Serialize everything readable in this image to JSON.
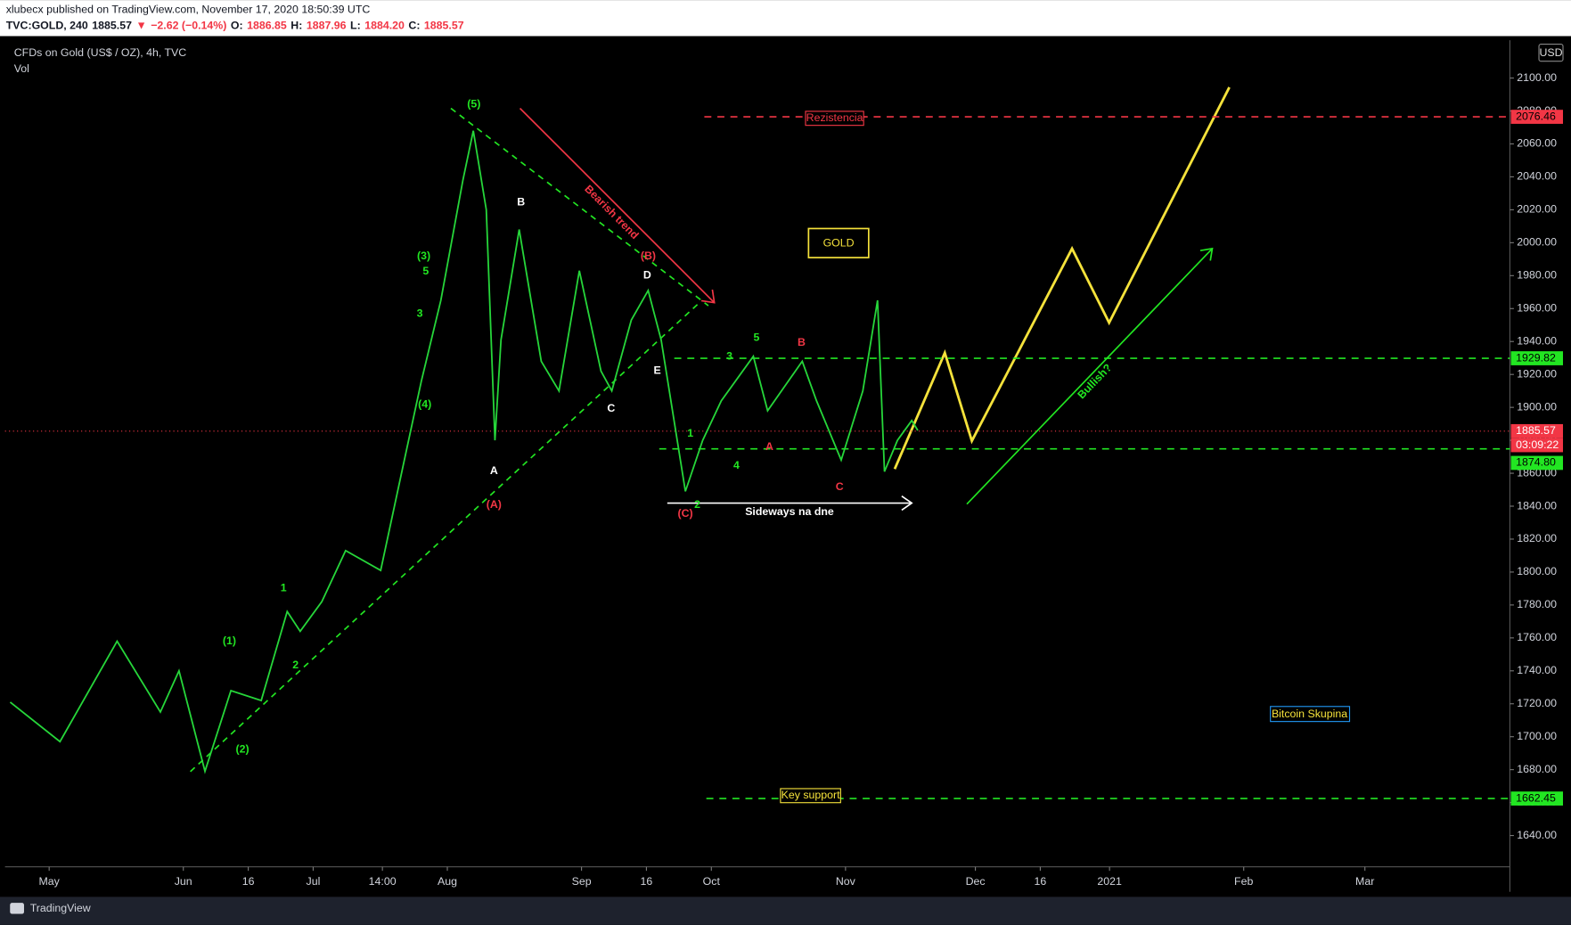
{
  "header": {
    "line1": "xlubecx published on TradingView.com, November 17, 2020 18:50:39 UTC",
    "line2": [
      "TVC:GOLD, 240",
      "1885.57",
      "▼",
      "−2.62 (−0.14%)",
      "O:",
      "1886.85",
      "H:",
      "1887.96",
      "L:",
      "1884.20",
      "C:",
      "1885.57"
    ]
  },
  "chart_data": {
    "type": "line",
    "title": "CFDs on Gold (US$ / OZ), 4h, TVC",
    "subtitle": "Vol",
    "currency": "USD",
    "xlim": [
      -10.2,
      337.5
    ],
    "xticks": [
      {
        "value": 0,
        "label": "May"
      },
      {
        "value": 31,
        "label": "Jun"
      },
      {
        "value": 46,
        "label": "16"
      },
      {
        "value": 61,
        "label": "Jul"
      },
      {
        "value": 77,
        "label": "14:00"
      },
      {
        "value": 92,
        "label": "Aug"
      },
      {
        "value": 123,
        "label": "Sep"
      },
      {
        "value": 138,
        "label": "16"
      },
      {
        "value": 153,
        "label": "Oct"
      },
      {
        "value": 184,
        "label": "Nov"
      },
      {
        "value": 214,
        "label": "Dec"
      },
      {
        "value": 229,
        "label": "16"
      },
      {
        "value": 245,
        "label": "2021"
      },
      {
        "value": 276,
        "label": "Feb"
      },
      {
        "value": 304,
        "label": "Mar"
      }
    ],
    "ylim": [
      1621,
      2123
    ],
    "yticks": [
      {
        "value": 1640,
        "label": "1640.00"
      },
      {
        "value": 1660,
        "label": "1660.00"
      },
      {
        "value": 1680,
        "label": "1680.00"
      },
      {
        "value": 1700,
        "label": "1700.00"
      },
      {
        "value": 1720,
        "label": "1720.00"
      },
      {
        "value": 1740,
        "label": "1740.00"
      },
      {
        "value": 1760,
        "label": "1760.00"
      },
      {
        "value": 1780,
        "label": "1780.00"
      },
      {
        "value": 1800,
        "label": "1800.00"
      },
      {
        "value": 1820,
        "label": "1820.00"
      },
      {
        "value": 1840,
        "label": "1840.00"
      },
      {
        "value": 1860,
        "label": "1860.00"
      },
      {
        "value": 1880,
        "label": "1880.00"
      },
      {
        "value": 1900,
        "label": "1900.00"
      },
      {
        "value": 1920,
        "label": "1920.00"
      },
      {
        "value": 1940,
        "label": "1940.00"
      },
      {
        "value": 1960,
        "label": "1960.00"
      },
      {
        "value": 1980,
        "label": "1980.00"
      },
      {
        "value": 2000,
        "label": "2000.00"
      },
      {
        "value": 2020,
        "label": "2020.00"
      },
      {
        "value": 2040,
        "label": "2040.00"
      },
      {
        "value": 2060,
        "label": "2060.00"
      },
      {
        "value": 2080,
        "label": "2080.00"
      },
      {
        "value": 2100,
        "label": "2100.00"
      }
    ],
    "series": [
      {
        "name": "GOLD",
        "color": "#26d63a",
        "x": [
          -9,
          2.5,
          15.7,
          25.7,
          30,
          36,
          42,
          49,
          55,
          58,
          63,
          68.5,
          76.6,
          81,
          86,
          90.5,
          95.6,
          98,
          101,
          103,
          104.4,
          108.6,
          113.7,
          117.8,
          122.5,
          127.5,
          130,
          134.5,
          138.4,
          141.4,
          147,
          151,
          155.3,
          162.7,
          166,
          174,
          177.3,
          183,
          188,
          191.4,
          193,
          196,
          199.3,
          200.7
        ],
        "values": [
          1721,
          1697,
          1758,
          1715,
          1740,
          1679,
          1728,
          1722,
          1776,
          1764,
          1782,
          1813,
          1801,
          1855,
          1916,
          1965,
          2038,
          2068,
          2020,
          1880,
          1941,
          2008,
          1928,
          1910,
          1983,
          1922,
          1910,
          1953,
          1971,
          1941,
          1849,
          1880,
          1904,
          1931,
          1898,
          1928,
          1904,
          1868,
          1910,
          1965,
          1861,
          1880,
          1892,
          1886
        ]
      }
    ],
    "levels": [
      {
        "value": 2076.46,
        "label": "2076.46",
        "color": "#f23645"
      },
      {
        "value": 1929.82,
        "label": "1929.82",
        "color": "#22e622"
      },
      {
        "value": 1885.57,
        "label": "1885.57",
        "color": "#f23645"
      },
      {
        "value": 1874.8,
        "label": "1874.80",
        "color": "#22e622"
      },
      {
        "value": 1662.45,
        "label": "1662.45",
        "color": "#22e622"
      }
    ],
    "countdown": "03:09:22",
    "annotations": [
      "(5)",
      "(3)",
      "5",
      "3",
      "(4)",
      "(1)",
      "(2)",
      "1",
      "2",
      "B",
      "A",
      "(A)",
      "(B)",
      "D",
      "E",
      "C",
      "(C)",
      "2",
      "1",
      "3",
      "5",
      "4",
      "B",
      "A",
      "C",
      "GOLD",
      "Rezistencia",
      "Key support",
      "Bitcoin Skupina",
      "Sideways na dne",
      "Bearish trend",
      "Bullish?"
    ]
  },
  "footer": "TradingView"
}
